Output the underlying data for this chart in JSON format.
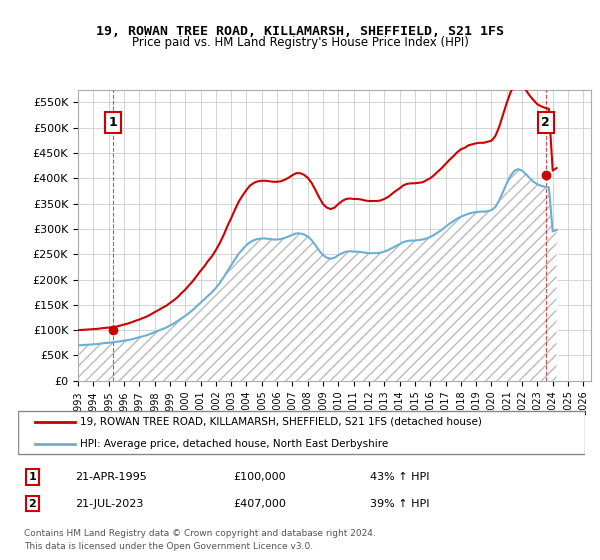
{
  "title": "19, ROWAN TREE ROAD, KILLAMARSH, SHEFFIELD, S21 1FS",
  "subtitle": "Price paid vs. HM Land Registry's House Price Index (HPI)",
  "legend_line1": "19, ROWAN TREE ROAD, KILLAMARSH, SHEFFIELD, S21 1FS (detached house)",
  "legend_line2": "HPI: Average price, detached house, North East Derbyshire",
  "sale1_label": "1",
  "sale1_date": "21-APR-1995",
  "sale1_price": "£100,000",
  "sale1_hpi": "43% ↑ HPI",
  "sale1_year": 1995.3,
  "sale1_value": 100000,
  "sale2_label": "2",
  "sale2_date": "21-JUL-2023",
  "sale2_price": "£407,000",
  "sale2_hpi": "39% ↑ HPI",
  "sale2_year": 2023.55,
  "sale2_value": 407000,
  "ylabel": "",
  "ylim": [
    0,
    575000
  ],
  "xlim": [
    1993.0,
    2026.5
  ],
  "yticks": [
    0,
    50000,
    100000,
    150000,
    200000,
    250000,
    300000,
    350000,
    400000,
    450000,
    500000,
    550000
  ],
  "ytick_labels": [
    "£0",
    "£50K",
    "£100K",
    "£150K",
    "£200K",
    "£250K",
    "£300K",
    "£350K",
    "£400K",
    "£450K",
    "£500K",
    "£550K"
  ],
  "xticks": [
    1993,
    1994,
    1995,
    1996,
    1997,
    1998,
    1999,
    2000,
    2001,
    2002,
    2003,
    2004,
    2005,
    2006,
    2007,
    2008,
    2009,
    2010,
    2011,
    2012,
    2013,
    2014,
    2015,
    2016,
    2017,
    2018,
    2019,
    2020,
    2021,
    2022,
    2023,
    2024,
    2025,
    2026
  ],
  "hpi_color": "#6baed6",
  "price_color": "#cc0000",
  "hatch_pattern": "///",
  "background_color": "#ffffff",
  "grid_color": "#cccccc",
  "sale_marker_color": "#cc0000",
  "note_line1": "Contains HM Land Registry data © Crown copyright and database right 2024.",
  "note_line2": "This data is licensed under the Open Government Licence v3.0.",
  "hpi_data_years": [
    1993.0,
    1993.25,
    1993.5,
    1993.75,
    1994.0,
    1994.25,
    1994.5,
    1994.75,
    1995.0,
    1995.25,
    1995.5,
    1995.75,
    1996.0,
    1996.25,
    1996.5,
    1996.75,
    1997.0,
    1997.25,
    1997.5,
    1997.75,
    1998.0,
    1998.25,
    1998.5,
    1998.75,
    1999.0,
    1999.25,
    1999.5,
    1999.75,
    2000.0,
    2000.25,
    2000.5,
    2000.75,
    2001.0,
    2001.25,
    2001.5,
    2001.75,
    2002.0,
    2002.25,
    2002.5,
    2002.75,
    2003.0,
    2003.25,
    2003.5,
    2003.75,
    2004.0,
    2004.25,
    2004.5,
    2004.75,
    2005.0,
    2005.25,
    2005.5,
    2005.75,
    2006.0,
    2006.25,
    2006.5,
    2006.75,
    2007.0,
    2007.25,
    2007.5,
    2007.75,
    2008.0,
    2008.25,
    2008.5,
    2008.75,
    2009.0,
    2009.25,
    2009.5,
    2009.75,
    2010.0,
    2010.25,
    2010.5,
    2010.75,
    2011.0,
    2011.25,
    2011.5,
    2011.75,
    2012.0,
    2012.25,
    2012.5,
    2012.75,
    2013.0,
    2013.25,
    2013.5,
    2013.75,
    2014.0,
    2014.25,
    2014.5,
    2014.75,
    2015.0,
    2015.25,
    2015.5,
    2015.75,
    2016.0,
    2016.25,
    2016.5,
    2016.75,
    2017.0,
    2017.25,
    2017.5,
    2017.75,
    2018.0,
    2018.25,
    2018.5,
    2018.75,
    2019.0,
    2019.25,
    2019.5,
    2019.75,
    2020.0,
    2020.25,
    2020.5,
    2020.75,
    2021.0,
    2021.25,
    2021.5,
    2021.75,
    2022.0,
    2022.25,
    2022.5,
    2022.75,
    2023.0,
    2023.25,
    2023.5,
    2023.75,
    2024.0,
    2024.25
  ],
  "hpi_data_values": [
    70000,
    70500,
    71000,
    71500,
    72000,
    72500,
    73500,
    74500,
    75000,
    76000,
    77000,
    78000,
    79000,
    80500,
    82000,
    84000,
    86000,
    88000,
    90000,
    93000,
    96000,
    99000,
    102000,
    105000,
    109000,
    113000,
    118000,
    123000,
    128000,
    134000,
    140000,
    147000,
    154000,
    161000,
    168000,
    175000,
    183000,
    193000,
    204000,
    216000,
    228000,
    240000,
    251000,
    260000,
    268000,
    274000,
    278000,
    280000,
    281000,
    281000,
    280000,
    279000,
    279000,
    280000,
    282000,
    285000,
    288000,
    291000,
    291000,
    289000,
    285000,
    278000,
    268000,
    257000,
    248000,
    243000,
    241000,
    243000,
    248000,
    252000,
    255000,
    256000,
    255000,
    255000,
    254000,
    253000,
    252000,
    252000,
    252000,
    253000,
    255000,
    258000,
    262000,
    266000,
    270000,
    274000,
    276000,
    277000,
    277000,
    278000,
    279000,
    281000,
    284000,
    288000,
    293000,
    298000,
    304000,
    310000,
    315000,
    320000,
    324000,
    327000,
    330000,
    332000,
    333000,
    334000,
    334000,
    335000,
    337000,
    343000,
    356000,
    373000,
    390000,
    405000,
    415000,
    418000,
    415000,
    408000,
    400000,
    393000,
    388000,
    385000,
    383000,
    382000,
    295000,
    298000
  ],
  "price_data_years": [
    1993.0,
    1993.25,
    1993.5,
    1993.75,
    1994.0,
    1994.25,
    1994.5,
    1994.75,
    1995.0,
    1995.25,
    1995.5,
    1995.75,
    1996.0,
    1996.25,
    1996.5,
    1996.75,
    1997.0,
    1997.25,
    1997.5,
    1997.75,
    1998.0,
    1998.25,
    1998.5,
    1998.75,
    1999.0,
    1999.25,
    1999.5,
    1999.75,
    2000.0,
    2000.25,
    2000.5,
    2000.75,
    2001.0,
    2001.25,
    2001.5,
    2001.75,
    2002.0,
    2002.25,
    2002.5,
    2002.75,
    2003.0,
    2003.25,
    2003.5,
    2003.75,
    2004.0,
    2004.25,
    2004.5,
    2004.75,
    2005.0,
    2005.25,
    2005.5,
    2005.75,
    2006.0,
    2006.25,
    2006.5,
    2006.75,
    2007.0,
    2007.25,
    2007.5,
    2007.75,
    2008.0,
    2008.25,
    2008.5,
    2008.75,
    2009.0,
    2009.25,
    2009.5,
    2009.75,
    2010.0,
    2010.25,
    2010.5,
    2010.75,
    2011.0,
    2011.25,
    2011.5,
    2011.75,
    2012.0,
    2012.25,
    2012.5,
    2012.75,
    2013.0,
    2013.25,
    2013.5,
    2013.75,
    2014.0,
    2014.25,
    2014.5,
    2014.75,
    2015.0,
    2015.25,
    2015.5,
    2015.75,
    2016.0,
    2016.25,
    2016.5,
    2016.75,
    2017.0,
    2017.25,
    2017.5,
    2017.75,
    2018.0,
    2018.25,
    2018.5,
    2018.75,
    2019.0,
    2019.25,
    2019.5,
    2019.75,
    2020.0,
    2020.25,
    2020.5,
    2020.75,
    2021.0,
    2021.25,
    2021.5,
    2021.75,
    2022.0,
    2022.25,
    2022.5,
    2022.75,
    2023.0,
    2023.25,
    2023.5,
    2023.75,
    2024.0,
    2024.25
  ],
  "price_data_values": [
    100000,
    100500,
    101000,
    101500,
    102000,
    102500,
    103500,
    104500,
    105000,
    106000,
    107000,
    109000,
    111000,
    113000,
    115500,
    118500,
    121000,
    124000,
    127000,
    131000,
    135500,
    139500,
    144000,
    148000,
    153500,
    159000,
    165000,
    173000,
    180000,
    188500,
    197000,
    207000,
    217000,
    226000,
    237000,
    246000,
    258000,
    271500,
    287000,
    305000,
    321000,
    338000,
    354000,
    366000,
    377000,
    386000,
    391000,
    394000,
    395000,
    395000,
    394000,
    393000,
    393000,
    394000,
    397000,
    401000,
    406000,
    410000,
    410000,
    407000,
    401000,
    391000,
    377000,
    362000,
    349000,
    342000,
    339000,
    342000,
    349000,
    355000,
    359000,
    360000,
    359000,
    359000,
    358000,
    356000,
    355000,
    355000,
    355000,
    356000,
    359000,
    363000,
    369000,
    375000,
    380000,
    386000,
    389000,
    390000,
    390000,
    391000,
    392000,
    396000,
    400000,
    406000,
    413000,
    420000,
    428000,
    436000,
    443000,
    451000,
    457000,
    460000,
    465000,
    467000,
    469000,
    470000,
    470000,
    472000,
    474000,
    483000,
    501000,
    525000,
    549000,
    570000,
    584000,
    588000,
    584000,
    574000,
    563000,
    554000,
    546000,
    542000,
    539000,
    537000,
    415000,
    420000
  ]
}
